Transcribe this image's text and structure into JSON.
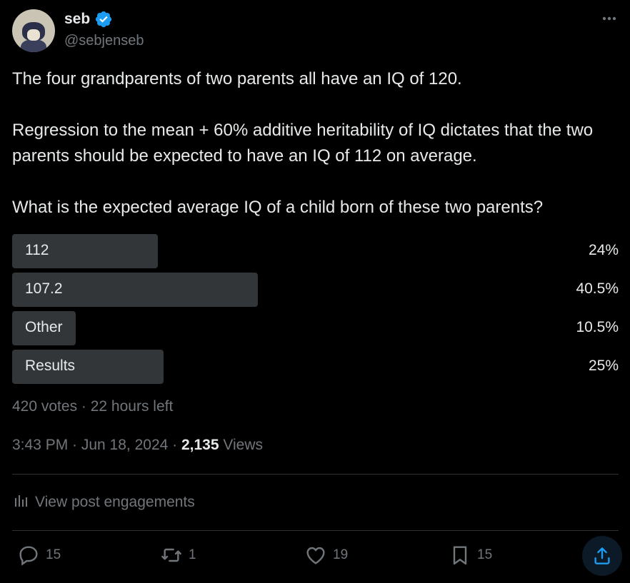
{
  "author": {
    "name": "seb",
    "handle": "@sebjenseb",
    "verified": true
  },
  "post": {
    "text": "The four grandparents of two parents all have an IQ of 120.\n\nRegression to the mean + 60% additive heritability of IQ dictates that the two parents should be expected to have an IQ of 112 on average.\n\nWhat is the expected average IQ of a child born of these two parents?"
  },
  "poll": {
    "options": [
      {
        "label": "112",
        "percent": "24%",
        "fraction": 0.24
      },
      {
        "label": "107.2",
        "percent": "40.5%",
        "fraction": 0.405
      },
      {
        "label": "Other",
        "percent": "10.5%",
        "fraction": 0.105
      },
      {
        "label": "Results",
        "percent": "25%",
        "fraction": 0.25
      }
    ],
    "meta": "420 votes · 22 hours left"
  },
  "timestamp": {
    "time": "3:43 PM · Jun 18, 2024 · ",
    "views_count": "2,135",
    "views_label": " Views"
  },
  "engagements_link": "View post engagements",
  "actions": {
    "replies": "15",
    "reposts": "1",
    "likes": "19",
    "bookmarks": "15"
  },
  "icons": {
    "verified": "verified-badge-icon",
    "more": "more-icon",
    "engagements": "bar-chart-icon",
    "reply": "reply-icon",
    "repost": "repost-icon",
    "like": "heart-icon",
    "bookmark": "bookmark-icon",
    "share": "share-icon"
  },
  "colors": {
    "background": "#000000",
    "text": "#e7e9ea",
    "secondary_text": "#71767b",
    "poll_bar": "#333639",
    "accent": "#1d9bf0",
    "divider": "#2f3336"
  }
}
